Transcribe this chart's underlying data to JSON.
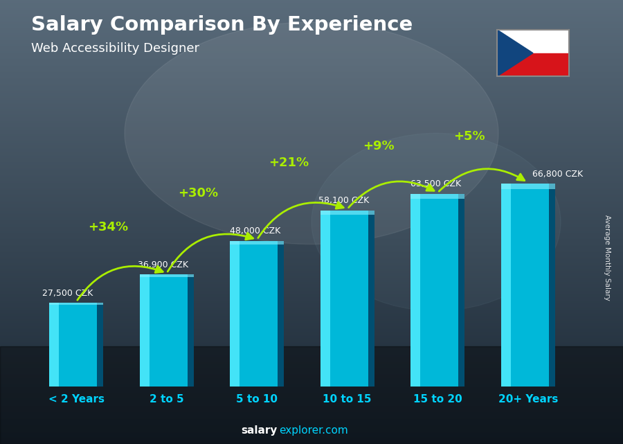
{
  "title": "Salary Comparison By Experience",
  "subtitle": "Web Accessibility Designer",
  "ylabel": "Average Monthly Salary",
  "footer_bold": "salary",
  "footer_normal": "explorer.com",
  "categories": [
    "< 2 Years",
    "2 to 5",
    "5 to 10",
    "10 to 15",
    "15 to 20",
    "20+ Years"
  ],
  "values": [
    27500,
    36900,
    48000,
    58100,
    63500,
    66800
  ],
  "labels": [
    "27,500 CZK",
    "36,900 CZK",
    "48,000 CZK",
    "58,100 CZK",
    "63,500 CZK",
    "66,800 CZK"
  ],
  "pct_changes": [
    "+34%",
    "+30%",
    "+21%",
    "+9%",
    "+5%"
  ],
  "bar_main_color": "#00c0e0",
  "bar_left_color": "#40e0ff",
  "bar_right_color": "#005580",
  "bg_color": "#2a3a4a",
  "title_color": "#ffffff",
  "label_color": "#ffffff",
  "xtick_color": "#00d4ff",
  "pct_color": "#aaee00",
  "ylim": [
    0,
    85000
  ],
  "figsize": [
    9.0,
    6.41
  ],
  "dpi": 100,
  "bar_width": 0.6
}
